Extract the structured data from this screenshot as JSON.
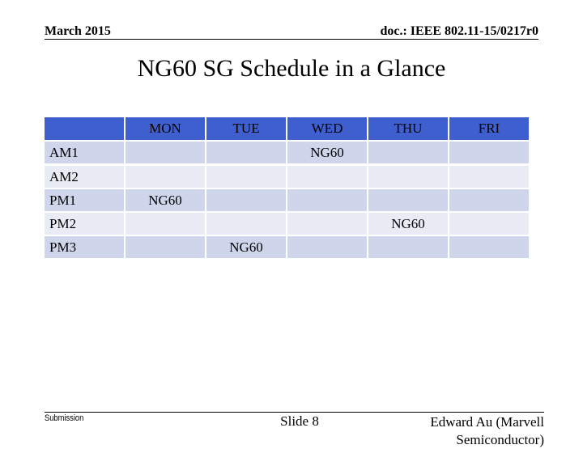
{
  "header": {
    "date": "March 2015",
    "doc": "doc.: IEEE 802.11-15/0217r0"
  },
  "title": "NG60 SG Schedule in a Glance",
  "table": {
    "columns": [
      "MON",
      "TUE",
      "WED",
      "THU",
      "FRI"
    ],
    "rows": [
      {
        "label": "AM1",
        "cells": [
          null,
          null,
          "NG60",
          null,
          null
        ]
      },
      {
        "label": "AM2",
        "cells": [
          null,
          null,
          null,
          null,
          null
        ]
      },
      {
        "label": "PM1",
        "cells": [
          "NG60",
          null,
          null,
          null,
          null
        ]
      },
      {
        "label": "PM2",
        "cells": [
          null,
          null,
          null,
          "NG60",
          null
        ]
      },
      {
        "label": "PM3",
        "cells": [
          null,
          "NG60",
          null,
          null,
          null
        ]
      }
    ]
  },
  "footer": {
    "submission": "Submission",
    "slide": "Slide 8",
    "author": "Edward Au (Marvell Semiconductor)"
  }
}
